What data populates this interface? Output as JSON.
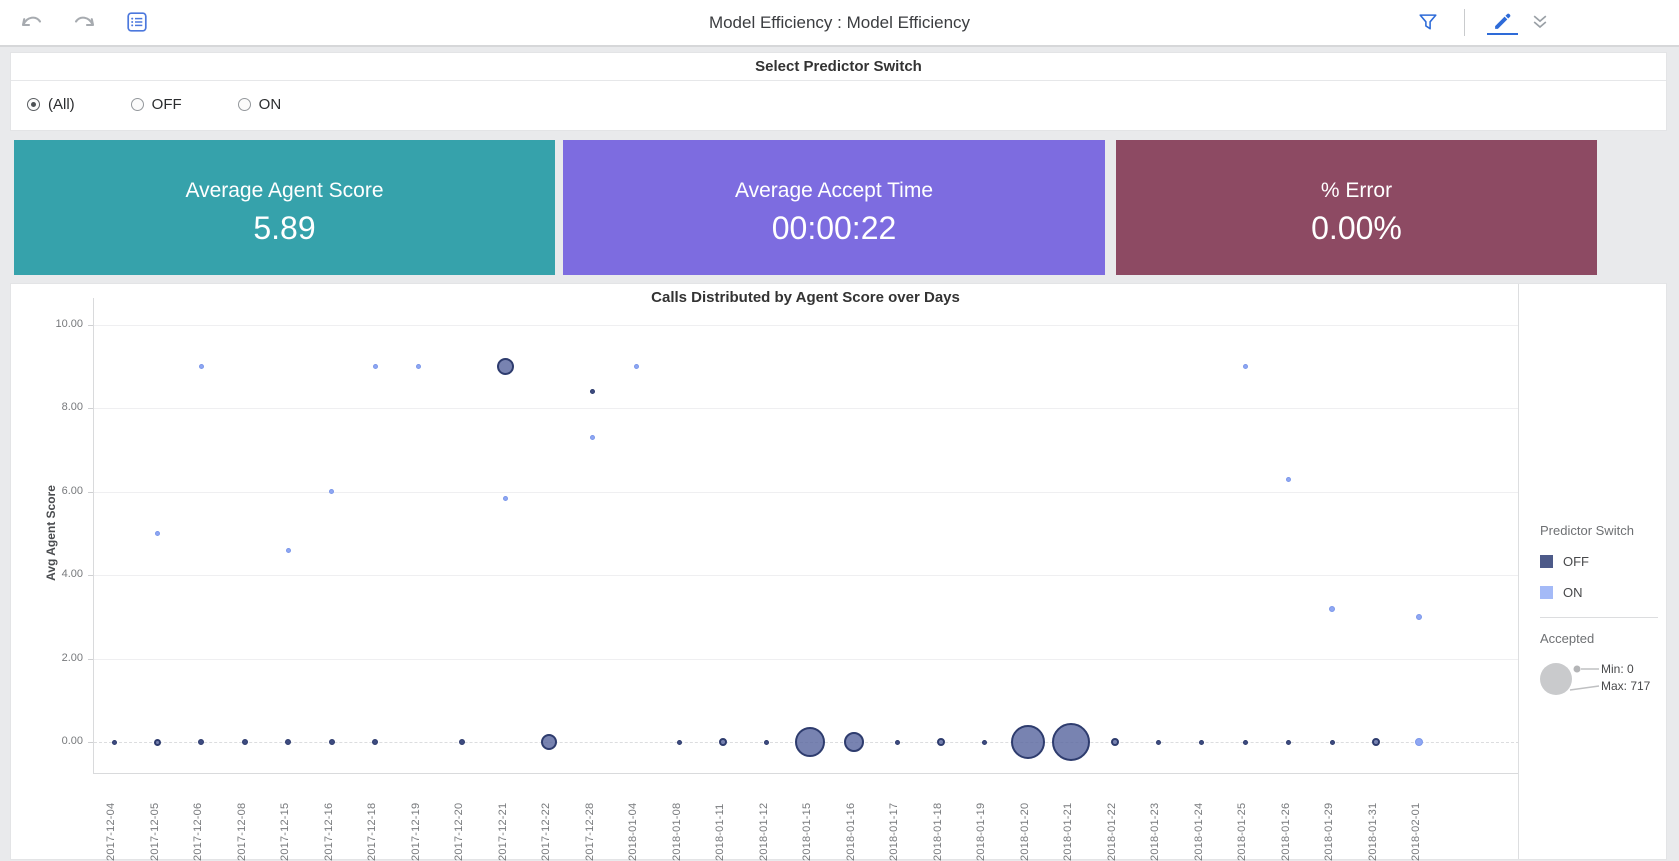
{
  "toolbar": {
    "title": "Model Efficiency : Model Efficiency",
    "icons": [
      "undo",
      "redo",
      "view-list",
      "filter-funnel",
      "edit-pencil",
      "collapse-chevrons"
    ]
  },
  "filter": {
    "title": "Select Predictor Switch",
    "options": [
      {
        "label": "(All)",
        "selected": true
      },
      {
        "label": "OFF",
        "selected": false
      },
      {
        "label": "ON",
        "selected": false
      }
    ]
  },
  "kpis": [
    {
      "label": "Average Agent Score",
      "value": "5.89",
      "color": "#36a2ab"
    },
    {
      "label": "Average Accept Time",
      "value": "00:00:22",
      "color": "#7d6ce0"
    },
    {
      "label": "% Error",
      "value": "0.00%",
      "color": "#8d4a63"
    }
  ],
  "chart_data": {
    "type": "scatter",
    "title": "Calls Distributed by Agent Score over Days",
    "xlabel": "",
    "ylabel": "Avg Agent Score",
    "ylim": [
      0,
      10
    ],
    "grid": true,
    "yticks": [
      {
        "label": "10.00",
        "v": 10
      },
      {
        "label": "8.00",
        "v": 8
      },
      {
        "label": "6.00",
        "v": 6
      },
      {
        "label": "4.00",
        "v": 4
      },
      {
        "label": "2.00",
        "v": 2
      },
      {
        "label": "0.00",
        "v": 0
      }
    ],
    "categories": [
      "2017-12-04",
      "2017-12-05",
      "2017-12-06",
      "2017-12-08",
      "2017-12-15",
      "2017-12-16",
      "2017-12-18",
      "2017-12-19",
      "2017-12-20",
      "2017-12-21",
      "2017-12-22",
      "2017-12-28",
      "2018-01-04",
      "2018-01-08",
      "2018-01-11",
      "2018-01-12",
      "2018-01-15",
      "2018-01-16",
      "2018-01-17",
      "2018-01-18",
      "2018-01-19",
      "2018-01-20",
      "2018-01-21",
      "2018-01-22",
      "2018-01-23",
      "2018-01-24",
      "2018-01-25",
      "2018-01-26",
      "2018-01-29",
      "2018-01-31",
      "2018-02-01"
    ],
    "size_encoding_note": "bubble size = Accepted calls, r given in screen px",
    "series": [
      {
        "name": "OFF",
        "fill": "#5a68a0",
        "stroke": "#2e3c6e",
        "legend_swatch": "#4d5a89",
        "points": [
          {
            "d": 0,
            "v": 0,
            "r": 2.5
          },
          {
            "d": 1,
            "v": 0,
            "r": 3.5
          },
          {
            "d": 2,
            "v": 0,
            "r": 3
          },
          {
            "d": 3,
            "v": 0,
            "r": 3
          },
          {
            "d": 4,
            "v": 0,
            "r": 3
          },
          {
            "d": 5,
            "v": 0,
            "r": 3
          },
          {
            "d": 6,
            "v": 0,
            "r": 3
          },
          {
            "d": 8,
            "v": 0,
            "r": 3
          },
          {
            "d": 10,
            "v": 0,
            "r": 8
          },
          {
            "d": 13,
            "v": 0,
            "r": 2.5
          },
          {
            "d": 14,
            "v": 0,
            "r": 4
          },
          {
            "d": 15,
            "v": 0,
            "r": 2.5
          },
          {
            "d": 16,
            "v": 0,
            "r": 15
          },
          {
            "d": 17,
            "v": 0,
            "r": 10
          },
          {
            "d": 18,
            "v": 0,
            "r": 2.5
          },
          {
            "d": 19,
            "v": 0,
            "r": 4
          },
          {
            "d": 20,
            "v": 0,
            "r": 2.5
          },
          {
            "d": 21,
            "v": 0,
            "r": 17
          },
          {
            "d": 22,
            "v": 0,
            "r": 19
          },
          {
            "d": 23,
            "v": 0,
            "r": 4
          },
          {
            "d": 24,
            "v": 0,
            "r": 2.5
          },
          {
            "d": 25,
            "v": 0,
            "r": 2.5
          },
          {
            "d": 26,
            "v": 0,
            "r": 2.5
          },
          {
            "d": 27,
            "v": 0,
            "r": 2.5
          },
          {
            "d": 28,
            "v": 0,
            "r": 2.5
          },
          {
            "d": 29,
            "v": 0,
            "r": 4
          },
          {
            "d": 9,
            "v": 9,
            "r": 8.5
          },
          {
            "d": 11,
            "v": 8.4,
            "r": 2.5
          }
        ]
      },
      {
        "name": "ON",
        "fill": "#8fa7f3",
        "stroke": "#7b97ea",
        "legend_swatch": "#a4baf7",
        "points": [
          {
            "d": 1,
            "v": 5,
            "r": 2.5
          },
          {
            "d": 2,
            "v": 9,
            "r": 2.5
          },
          {
            "d": 4,
            "v": 4.6,
            "r": 2.5
          },
          {
            "d": 5,
            "v": 6,
            "r": 2.5
          },
          {
            "d": 6,
            "v": 9,
            "r": 2.5
          },
          {
            "d": 7,
            "v": 9,
            "r": 2.5
          },
          {
            "d": 9,
            "v": 5.85,
            "r": 2.5
          },
          {
            "d": 11,
            "v": 7.3,
            "r": 2.5
          },
          {
            "d": 12,
            "v": 9,
            "r": 2.5
          },
          {
            "d": 26,
            "v": 9,
            "r": 2.5
          },
          {
            "d": 27,
            "v": 6.3,
            "r": 2.5
          },
          {
            "d": 28,
            "v": 3.2,
            "r": 3
          },
          {
            "d": 30,
            "v": 3,
            "r": 3
          },
          {
            "d": 30,
            "v": 0,
            "r": 4
          }
        ]
      }
    ],
    "legend": {
      "color_title": "Predictor Switch",
      "size_title": "Accepted",
      "size_min": "Min: 0",
      "size_max": "Max: 717"
    }
  }
}
